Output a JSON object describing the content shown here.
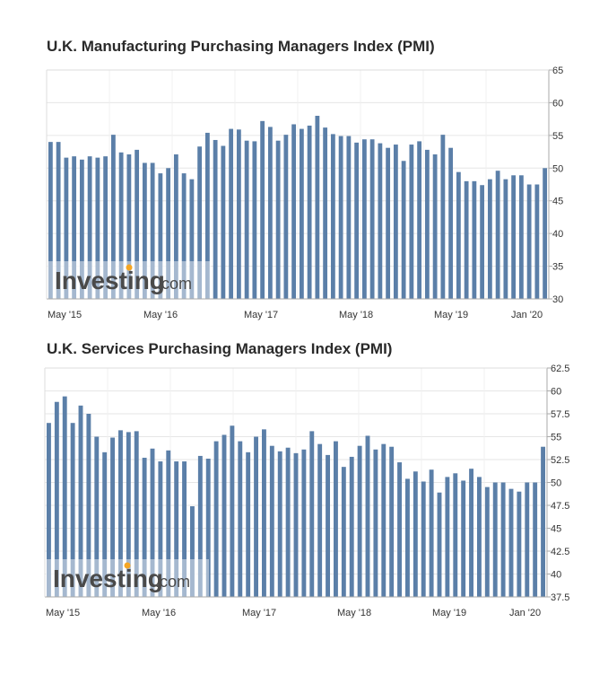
{
  "colors": {
    "bar": "#5b7fa8",
    "grid": "#e6e6e6",
    "axis": "#aaaaaa",
    "watermark_dot": "#f5a623"
  },
  "watermark": {
    "brand": "Investing",
    "suffix": ".com"
  },
  "chart_data": [
    {
      "type": "bar",
      "title": "U.K. Manufacturing Purchasing Managers Index (PMI)",
      "x_tick_labels": [
        "May '15",
        "May '16",
        "May '17",
        "May '18",
        "May '19",
        "Jan '20"
      ],
      "y_ticks": [
        "30",
        "35",
        "40",
        "45",
        "50",
        "55",
        "60",
        "65"
      ],
      "ylim": [
        30,
        65
      ],
      "grid": true,
      "values": [
        54.0,
        54.0,
        51.6,
        51.8,
        51.3,
        51.8,
        51.6,
        51.8,
        55.1,
        52.4,
        52.1,
        52.8,
        50.8,
        50.8,
        49.2,
        50.0,
        52.1,
        49.2,
        48.3,
        53.3,
        55.4,
        54.3,
        53.4,
        56.0,
        55.9,
        54.2,
        54.1,
        57.2,
        56.3,
        54.2,
        55.1,
        56.7,
        56.0,
        56.5,
        58.0,
        56.2,
        55.2,
        54.9,
        54.9,
        53.9,
        54.4,
        54.4,
        53.8,
        53.1,
        53.6,
        51.1,
        53.6,
        54.1,
        52.8,
        52.1,
        55.1,
        53.1,
        49.4,
        48.0,
        48.0,
        47.4,
        48.3,
        49.6,
        48.3,
        48.9,
        48.9,
        47.5,
        47.5,
        50.0
      ],
      "tick_positions": [
        0,
        12,
        25,
        37,
        49,
        57
      ]
    },
    {
      "type": "bar",
      "title": "U.K. Services Purchasing Managers Index (PMI)",
      "x_tick_labels": [
        "May '15",
        "May '16",
        "May '17",
        "May '18",
        "May '19",
        "Jan '20"
      ],
      "y_ticks": [
        "37.5",
        "40",
        "42.5",
        "45",
        "47.5",
        "50",
        "52.5",
        "55",
        "57.5",
        "60",
        "62.5"
      ],
      "ylim": [
        37.5,
        62.5
      ],
      "grid": true,
      "values": [
        56.5,
        58.8,
        59.4,
        56.5,
        58.4,
        57.5,
        55.0,
        53.3,
        54.9,
        55.7,
        55.5,
        55.6,
        52.7,
        53.7,
        52.3,
        53.5,
        52.3,
        52.3,
        47.4,
        52.9,
        52.6,
        54.5,
        55.2,
        56.2,
        54.5,
        53.3,
        55.0,
        55.8,
        54.0,
        53.4,
        53.8,
        53.2,
        53.6,
        55.6,
        54.2,
        53.0,
        54.5,
        51.7,
        52.8,
        54.0,
        55.1,
        53.6,
        54.2,
        53.9,
        52.2,
        50.4,
        51.2,
        50.1,
        51.4,
        48.9,
        50.6,
        51.0,
        50.2,
        51.5,
        50.6,
        49.5,
        50.0,
        50.0,
        49.3,
        49.0,
        50.0,
        50.0,
        53.9
      ],
      "tick_positions": [
        0,
        12,
        25,
        37,
        49,
        57
      ]
    }
  ]
}
